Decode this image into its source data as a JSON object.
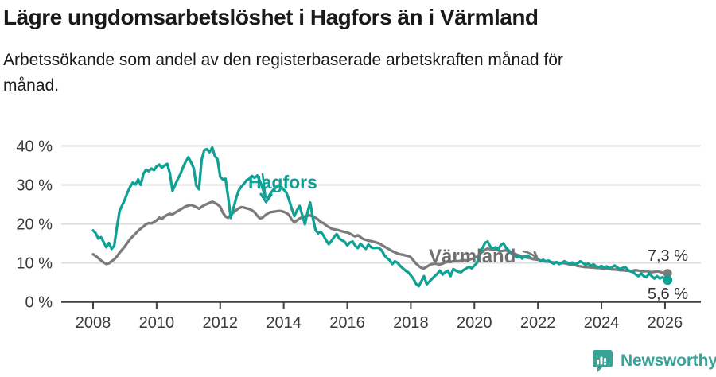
{
  "header": {
    "title": "Lägre ungdomsarbetslöshet i Hagfors än i Värmland",
    "subtitle_line1": "Arbetssökande som andel av den registerbaserade arbetskraften månad för",
    "subtitle_line2": "månad."
  },
  "footer": {
    "brand": "Newsworthy",
    "brand_color": "#38a398"
  },
  "chart_data": {
    "type": "line",
    "title": "Lägre ungdomsarbetslöshet i Hagfors än i Värmland",
    "subtitle": "Arbetssökande som andel av den registerbaserade arbetskraften månad för månad.",
    "unit": "%",
    "x_start": "2008-01",
    "x_interval": "monthly",
    "x_tick_years": [
      2008,
      2010,
      2012,
      2014,
      2016,
      2018,
      2020,
      2022,
      2024,
      2026
    ],
    "y_ticks": [
      {
        "value": 40,
        "label": "40 %"
      },
      {
        "value": 30,
        "label": "30 %"
      },
      {
        "value": 20,
        "label": "20 %"
      },
      {
        "value": 10,
        "label": "10 %"
      },
      {
        "value": 0,
        "label": "0 %"
      }
    ],
    "ylim": [
      0,
      42
    ],
    "grid": true,
    "legend_position": "inline-annotations",
    "series": [
      {
        "name": "Hagfors",
        "color": "#0fa294",
        "end_label": "5,6 %",
        "end_value": 5.6,
        "values": [
          18.3,
          17.6,
          16.2,
          16.6,
          15.3,
          14.0,
          15.1,
          13.6,
          14.4,
          19.2,
          23.3,
          24.8,
          26.2,
          28.1,
          29.5,
          30.6,
          30.1,
          31.4,
          30.0,
          32.8,
          33.9,
          33.5,
          34.2,
          33.8,
          34.8,
          35.2,
          34.4,
          35.0,
          35.4,
          33.0,
          28.5,
          30.0,
          31.5,
          32.8,
          34.6,
          36.0,
          37.1,
          35.8,
          34.3,
          29.8,
          28.9,
          36.5,
          38.9,
          39.2,
          38.4,
          39.6,
          37.4,
          36.6,
          32.1,
          31.4,
          31.6,
          27.0,
          21.5,
          24.0,
          26.5,
          28.6,
          29.6,
          30.3,
          31.2,
          31.6,
          32.3,
          31.8,
          32.4,
          31.0,
          29.2,
          27.1,
          26.5,
          27.8,
          28.7,
          29.3,
          29.9,
          29.5,
          28.8,
          28.0,
          26.2,
          24.0,
          22.0,
          23.5,
          24.6,
          22.3,
          19.9,
          23.0,
          25.5,
          21.5,
          18.4,
          17.6,
          18.0,
          17.0,
          15.8,
          14.8,
          15.6,
          16.6,
          17.4,
          16.2,
          15.8,
          15.4,
          14.5,
          15.2,
          15.5,
          14.4,
          13.8,
          14.9,
          14.2,
          13.6,
          14.7,
          14.0,
          13.8,
          13.9,
          13.8,
          13.2,
          12.0,
          11.2,
          10.7,
          9.7,
          10.4,
          10.0,
          9.2,
          8.6,
          8.0,
          7.6,
          6.8,
          5.9,
          4.6,
          4.0,
          5.3,
          6.6,
          4.5,
          5.2,
          5.9,
          6.6,
          7.2,
          8.0,
          7.0,
          7.6,
          8.0,
          6.6,
          8.4,
          8.0,
          7.7,
          7.6,
          8.2,
          8.6,
          9.0,
          8.6,
          9.3,
          10.0,
          12.7,
          13.7,
          15.1,
          15.5,
          14.2,
          13.7,
          14.0,
          13.4,
          14.6,
          15.0,
          13.8,
          13.2,
          12.5,
          12.0,
          11.4,
          11.8,
          11.1,
          11.5,
          11.9,
          11.4,
          11.0,
          11.3,
          10.9,
          10.5,
          10.8,
          10.3,
          10.6,
          10.1,
          9.8,
          10.2,
          9.7,
          10.0,
          10.4,
          10.1,
          9.8,
          10.1,
          9.6,
          9.9,
          10.4,
          10.0,
          9.5,
          9.8,
          9.3,
          9.6,
          9.1,
          8.9,
          9.2,
          8.8,
          9.1,
          8.6,
          8.9,
          9.3,
          8.8,
          8.4,
          8.7,
          8.9,
          8.2,
          7.8,
          7.6,
          7.0,
          6.6,
          7.3,
          6.6,
          6.3,
          7.3,
          6.6,
          6.0,
          6.6,
          6.0,
          6.3,
          5.9,
          5.6
        ]
      },
      {
        "name": "Värmland",
        "color": "#7b7b7b",
        "end_label": "7,3 %",
        "end_value": 7.3,
        "values": [
          12.2,
          11.8,
          11.2,
          10.6,
          10.1,
          9.7,
          9.9,
          10.4,
          10.9,
          11.7,
          12.6,
          13.4,
          14.2,
          15.2,
          16.1,
          16.8,
          17.5,
          18.2,
          18.8,
          19.3,
          19.9,
          20.2,
          20.1,
          20.5,
          20.9,
          21.6,
          21.3,
          21.9,
          22.3,
          22.6,
          22.4,
          22.9,
          23.3,
          23.7,
          24.1,
          24.5,
          24.7,
          24.9,
          24.6,
          24.3,
          23.9,
          24.4,
          24.8,
          25.1,
          25.4,
          25.7,
          25.4,
          25.0,
          24.4,
          22.9,
          21.9,
          21.6,
          22.3,
          22.9,
          23.5,
          24.0,
          24.3,
          24.2,
          24.0,
          23.8,
          23.5,
          23.0,
          22.1,
          21.4,
          21.6,
          22.2,
          22.7,
          23.0,
          23.1,
          23.2,
          23.3,
          23.3,
          23.1,
          22.8,
          22.3,
          21.1,
          20.4,
          20.9,
          21.4,
          21.7,
          21.9,
          22.1,
          22.2,
          21.9,
          21.6,
          21.1,
          20.5,
          20.2,
          19.6,
          19.2,
          18.8,
          18.6,
          18.5,
          18.3,
          18.1,
          17.9,
          17.8,
          17.5,
          17.1,
          16.8,
          17.1,
          16.6,
          16.1,
          15.9,
          15.7,
          15.6,
          15.4,
          15.2,
          15.0,
          14.6,
          14.2,
          13.8,
          13.4,
          13.0,
          12.7,
          12.4,
          12.2,
          12.1,
          11.9,
          11.8,
          11.4,
          10.6,
          9.8,
          9.2,
          8.7,
          8.6,
          9.0,
          9.4,
          9.7,
          9.8,
          9.7,
          9.6,
          9.8,
          10.1,
          10.3,
          10.2,
          10.4,
          10.5,
          10.4,
          10.6,
          10.7,
          10.6,
          10.8,
          11.0,
          11.3,
          11.6,
          12.2,
          12.8,
          13.3,
          13.7,
          13.5,
          13.3,
          13.4,
          13.2,
          13.0,
          13.1,
          13.2,
          13.0,
          12.7,
          12.4,
          12.1,
          11.9,
          11.7,
          11.5,
          11.3,
          11.2,
          11.0,
          10.9,
          10.8,
          10.6,
          10.5,
          10.4,
          10.3,
          10.2,
          10.1,
          10.1,
          10.0,
          10.0,
          9.9,
          9.8,
          9.6,
          9.5,
          9.4,
          9.2,
          9.1,
          9.0,
          8.9,
          8.9,
          8.8,
          8.8,
          8.7,
          8.7,
          8.6,
          8.5,
          8.5,
          8.4,
          8.3,
          8.3,
          8.2,
          8.1,
          8.1,
          8.0,
          8.0,
          7.9,
          8.0,
          8.1,
          8.0,
          7.9,
          7.8,
          7.9,
          7.7,
          7.6,
          7.7,
          7.8,
          7.7,
          7.5,
          7.4,
          7.3
        ]
      }
    ]
  }
}
